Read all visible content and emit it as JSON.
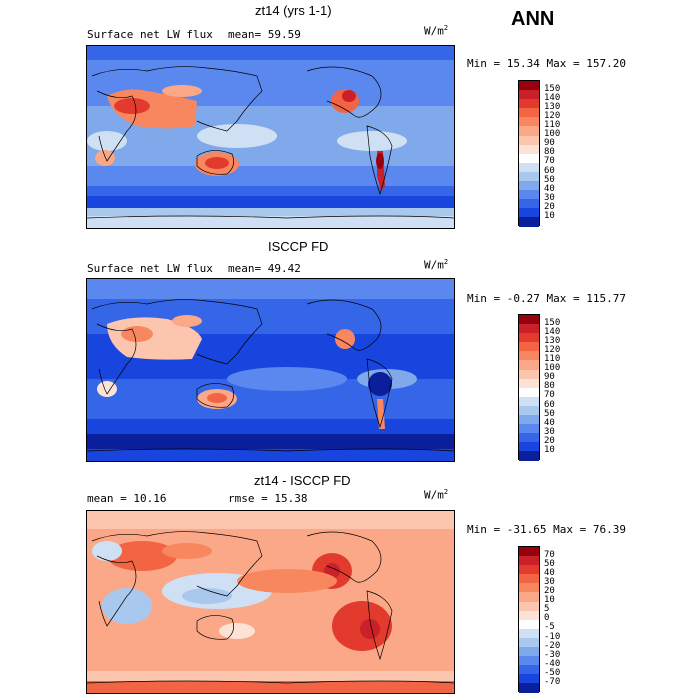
{
  "season": "ANN",
  "panels": [
    {
      "title": "zt14 (yrs 1-1)",
      "left_text": "Surface net LW flux",
      "mid_text": "mean=  59.59",
      "units": "W/m",
      "units_sup": "2",
      "minmax": "Min =  15.34 Max = 157.20",
      "levels": [
        "150",
        "140",
        "130",
        "120",
        "110",
        "100",
        "90",
        "80",
        "70",
        "60",
        "50",
        "40",
        "30",
        "20",
        "10"
      ],
      "colors": [
        "#99000d",
        "#c9202a",
        "#e23b2e",
        "#f26444",
        "#f8875f",
        "#fba888",
        "#fcc6ae",
        "#fde3d6",
        "#ffffff",
        "#cfe0f5",
        "#a9c8ee",
        "#7fa9ea",
        "#5a88ee",
        "#3566e8",
        "#1845dd",
        "#0b1f9c"
      ]
    },
    {
      "title": "ISCCP FD",
      "left_text": "Surface net LW flux",
      "mid_text": "mean=  49.42",
      "units": "W/m",
      "units_sup": "2",
      "minmax": "Min =  -0.27 Max = 115.77",
      "levels": [
        "150",
        "140",
        "130",
        "120",
        "110",
        "100",
        "90",
        "80",
        "70",
        "60",
        "50",
        "40",
        "30",
        "20",
        "10"
      ],
      "colors": [
        "#99000d",
        "#c9202a",
        "#e23b2e",
        "#f26444",
        "#f8875f",
        "#fba888",
        "#fcc6ae",
        "#fde3d6",
        "#ffffff",
        "#cfe0f5",
        "#a9c8ee",
        "#7fa9ea",
        "#5a88ee",
        "#3566e8",
        "#1845dd",
        "#0b1f9c"
      ]
    },
    {
      "title": "zt14 - ISCCP FD",
      "left_text": "mean =  10.16",
      "mid_text": "rmse =  15.38",
      "units": "W/m",
      "units_sup": "2",
      "minmax": "Min = -31.65 Max =  76.39",
      "levels": [
        "70",
        "50",
        "40",
        "30",
        "20",
        "10",
        "5",
        "0",
        "-5",
        "-10",
        "-20",
        "-30",
        "-40",
        "-50",
        "-70"
      ],
      "colors": [
        "#99000d",
        "#c9202a",
        "#e23b2e",
        "#f26444",
        "#f8875f",
        "#fba888",
        "#fcc6ae",
        "#fde3d6",
        "#ffffff",
        "#cfe0f5",
        "#a9c8ee",
        "#7fa9ea",
        "#5a88ee",
        "#3566e8",
        "#1845dd",
        "#0b1f9c"
      ]
    }
  ]
}
